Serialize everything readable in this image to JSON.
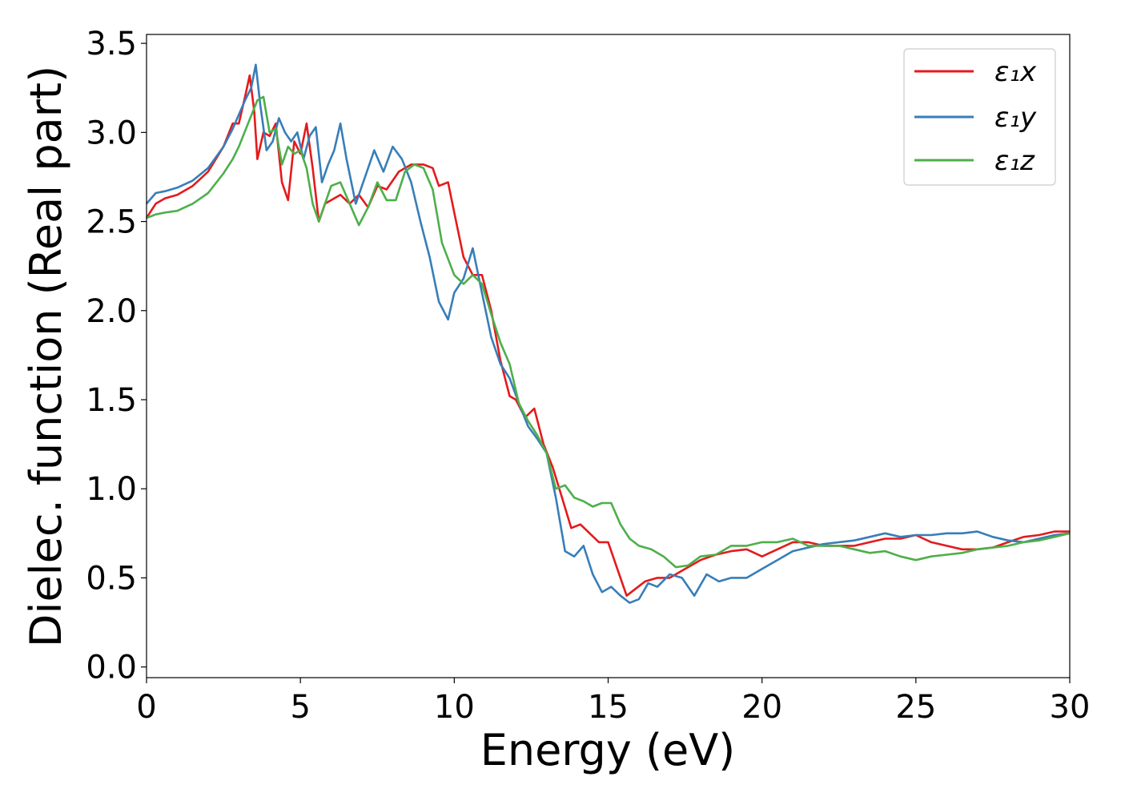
{
  "chart_data": {
    "type": "line",
    "xlabel": "Energy (eV)",
    "ylabel": "Dielec. function (Real part)",
    "xlim": [
      0,
      30
    ],
    "ylim": [
      -0.06,
      3.55
    ],
    "xticks": [
      "0",
      "5",
      "10",
      "15",
      "20",
      "25",
      "30"
    ],
    "yticks": [
      "0.0",
      "0.5",
      "1.0",
      "1.5",
      "2.0",
      "2.5",
      "3.0",
      "3.5"
    ],
    "grid": false,
    "legend_position": "top-right",
    "series": [
      {
        "name": "ε₁x",
        "color": "#e41a1c",
        "x": [
          0,
          0.3,
          0.6,
          1.0,
          1.5,
          2.0,
          2.5,
          2.8,
          3.0,
          3.2,
          3.35,
          3.5,
          3.6,
          3.8,
          4.0,
          4.2,
          4.4,
          4.6,
          4.8,
          5.0,
          5.2,
          5.4,
          5.6,
          5.8,
          6.0,
          6.3,
          6.6,
          6.9,
          7.2,
          7.5,
          7.8,
          8.2,
          8.6,
          9.0,
          9.3,
          9.5,
          9.8,
          10.0,
          10.3,
          10.6,
          10.9,
          11.2,
          11.5,
          11.8,
          12.0,
          12.3,
          12.6,
          12.9,
          13.2,
          13.5,
          13.8,
          14.1,
          14.4,
          14.7,
          15.0,
          15.3,
          15.6,
          15.9,
          16.2,
          16.6,
          17.0,
          17.5,
          18.0,
          18.5,
          19.0,
          19.5,
          20.0,
          20.5,
          21.0,
          21.5,
          22.0,
          22.5,
          23.0,
          23.5,
          24.0,
          24.5,
          25.0,
          25.5,
          26.0,
          26.5,
          27.0,
          27.5,
          28.0,
          28.5,
          29.0,
          29.5,
          30.0
        ],
        "values": [
          2.52,
          2.6,
          2.63,
          2.65,
          2.7,
          2.78,
          2.92,
          3.05,
          3.05,
          3.2,
          3.32,
          3.12,
          2.85,
          3.0,
          2.98,
          3.05,
          2.72,
          2.62,
          2.95,
          2.88,
          3.05,
          2.8,
          2.5,
          2.6,
          2.62,
          2.65,
          2.6,
          2.65,
          2.58,
          2.7,
          2.68,
          2.78,
          2.82,
          2.82,
          2.8,
          2.7,
          2.72,
          2.55,
          2.3,
          2.2,
          2.2,
          2.0,
          1.72,
          1.52,
          1.5,
          1.4,
          1.45,
          1.25,
          1.12,
          0.95,
          0.78,
          0.8,
          0.75,
          0.7,
          0.7,
          0.55,
          0.4,
          0.44,
          0.48,
          0.5,
          0.5,
          0.55,
          0.6,
          0.63,
          0.65,
          0.66,
          0.62,
          0.66,
          0.7,
          0.7,
          0.68,
          0.68,
          0.68,
          0.7,
          0.72,
          0.72,
          0.74,
          0.7,
          0.68,
          0.66,
          0.66,
          0.67,
          0.7,
          0.73,
          0.74,
          0.76,
          0.76
        ]
      },
      {
        "name": "ε₁y",
        "color": "#377eb8",
        "x": [
          0,
          0.3,
          0.6,
          1.0,
          1.5,
          2.0,
          2.5,
          2.8,
          3.0,
          3.2,
          3.4,
          3.55,
          3.7,
          3.9,
          4.1,
          4.3,
          4.5,
          4.7,
          4.9,
          5.1,
          5.3,
          5.5,
          5.7,
          5.9,
          6.1,
          6.3,
          6.5,
          6.8,
          7.1,
          7.4,
          7.7,
          8.0,
          8.3,
          8.6,
          8.9,
          9.2,
          9.5,
          9.8,
          10.0,
          10.3,
          10.6,
          10.9,
          11.2,
          11.5,
          11.8,
          12.1,
          12.4,
          12.7,
          13.0,
          13.3,
          13.6,
          13.9,
          14.2,
          14.5,
          14.8,
          15.1,
          15.4,
          15.7,
          16.0,
          16.3,
          16.6,
          17.0,
          17.4,
          17.8,
          18.2,
          18.6,
          19.0,
          19.5,
          20.0,
          20.5,
          21.0,
          21.5,
          22.0,
          22.5,
          23.0,
          23.5,
          24.0,
          24.5,
          25.0,
          25.5,
          26.0,
          26.5,
          27.0,
          27.5,
          28.0,
          28.5,
          29.0,
          29.5,
          30.0
        ],
        "values": [
          2.6,
          2.66,
          2.67,
          2.69,
          2.73,
          2.8,
          2.92,
          3.02,
          3.1,
          3.18,
          3.25,
          3.38,
          3.15,
          2.9,
          2.95,
          3.08,
          3.0,
          2.95,
          3.0,
          2.85,
          2.98,
          3.03,
          2.72,
          2.82,
          2.9,
          3.05,
          2.85,
          2.6,
          2.75,
          2.9,
          2.78,
          2.92,
          2.85,
          2.72,
          2.5,
          2.3,
          2.05,
          1.95,
          2.1,
          2.18,
          2.35,
          2.1,
          1.85,
          1.7,
          1.62,
          1.48,
          1.35,
          1.28,
          1.2,
          0.95,
          0.65,
          0.62,
          0.68,
          0.52,
          0.42,
          0.45,
          0.4,
          0.36,
          0.38,
          0.47,
          0.45,
          0.52,
          0.5,
          0.4,
          0.52,
          0.48,
          0.5,
          0.5,
          0.55,
          0.6,
          0.65,
          0.67,
          0.69,
          0.7,
          0.71,
          0.73,
          0.75,
          0.73,
          0.74,
          0.74,
          0.75,
          0.75,
          0.76,
          0.73,
          0.71,
          0.7,
          0.72,
          0.74,
          0.75
        ]
      },
      {
        "name": "ε₁z",
        "color": "#4daf4a",
        "x": [
          0,
          0.3,
          0.6,
          1.0,
          1.5,
          2.0,
          2.5,
          2.8,
          3.0,
          3.3,
          3.6,
          3.8,
          4.0,
          4.2,
          4.4,
          4.6,
          4.8,
          5.0,
          5.2,
          5.4,
          5.6,
          5.8,
          6.0,
          6.3,
          6.6,
          6.9,
          7.2,
          7.5,
          7.8,
          8.1,
          8.4,
          8.7,
          9.0,
          9.3,
          9.6,
          10.0,
          10.3,
          10.6,
          10.9,
          11.2,
          11.5,
          11.8,
          12.1,
          12.4,
          12.7,
          13.0,
          13.3,
          13.6,
          13.9,
          14.2,
          14.5,
          14.8,
          15.1,
          15.4,
          15.7,
          16.0,
          16.4,
          16.8,
          17.2,
          17.6,
          18.0,
          18.5,
          19.0,
          19.5,
          20.0,
          20.5,
          21.0,
          21.5,
          22.0,
          22.5,
          23.0,
          23.5,
          24.0,
          24.5,
          25.0,
          25.5,
          26.0,
          26.5,
          27.0,
          27.5,
          28.0,
          28.5,
          29.0,
          29.5,
          30.0
        ],
        "values": [
          2.52,
          2.54,
          2.55,
          2.56,
          2.6,
          2.66,
          2.77,
          2.85,
          2.92,
          3.05,
          3.18,
          3.2,
          3.0,
          3.02,
          2.82,
          2.92,
          2.88,
          2.9,
          2.8,
          2.6,
          2.5,
          2.6,
          2.7,
          2.72,
          2.6,
          2.48,
          2.58,
          2.72,
          2.62,
          2.62,
          2.78,
          2.82,
          2.8,
          2.68,
          2.38,
          2.2,
          2.15,
          2.2,
          2.15,
          1.98,
          1.82,
          1.7,
          1.48,
          1.38,
          1.3,
          1.2,
          1.0,
          1.02,
          0.95,
          0.93,
          0.9,
          0.92,
          0.92,
          0.8,
          0.72,
          0.68,
          0.66,
          0.62,
          0.56,
          0.57,
          0.62,
          0.63,
          0.68,
          0.68,
          0.7,
          0.7,
          0.72,
          0.68,
          0.68,
          0.68,
          0.66,
          0.64,
          0.65,
          0.62,
          0.6,
          0.62,
          0.63,
          0.64,
          0.66,
          0.67,
          0.68,
          0.7,
          0.71,
          0.73,
          0.75
        ]
      }
    ]
  }
}
